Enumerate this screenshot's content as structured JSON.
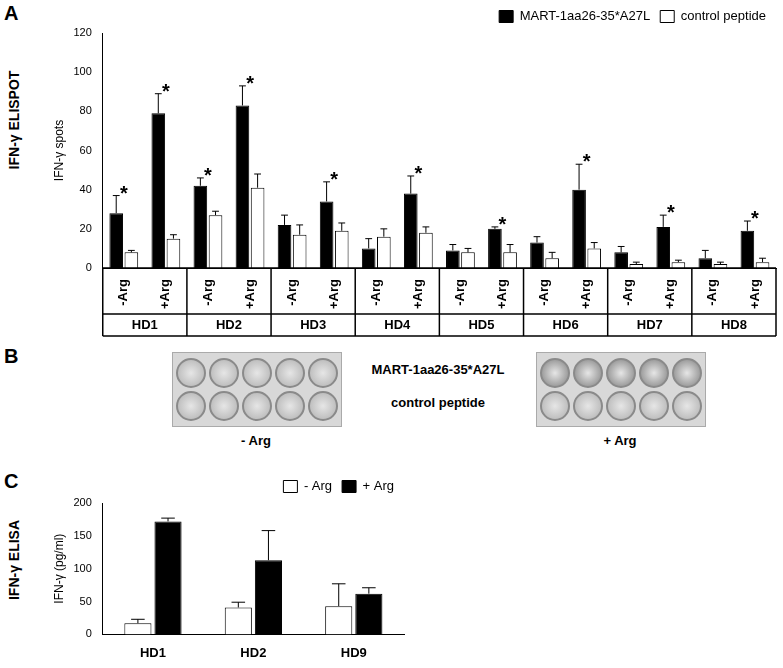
{
  "chart_data": [
    {
      "panel": "A",
      "side_title": "IFN-γ ELISPOT",
      "type": "bar",
      "y_label": "IFN-γ spots",
      "categories": [
        "-Arg",
        "+Arg",
        "-Arg",
        "+Arg",
        "-Arg",
        "+Arg",
        "-Arg",
        "+Arg",
        "-Arg",
        "+Arg",
        "-Arg",
        "+Arg",
        "-Arg",
        "+Arg",
        "-Arg",
        "+Arg"
      ],
      "groups": [
        "HD1",
        "HD2",
        "HD3",
        "HD4",
        "HD5",
        "HD6",
        "HD7",
        "HD8"
      ],
      "series": [
        {
          "name": "MART-1aa26-35*A27L",
          "color": "#000000",
          "values": [
            28,
            79,
            42,
            83,
            22,
            34,
            10,
            38,
            9,
            20,
            13,
            40,
            8,
            21,
            5,
            19
          ],
          "errors": [
            9,
            10,
            4,
            10,
            5,
            10,
            5,
            9,
            3,
            1,
            3,
            13,
            3,
            6,
            4,
            5
          ]
        },
        {
          "name": "control peptide",
          "color": "#ffffff",
          "values": [
            8,
            15,
            27,
            41,
            17,
            19,
            16,
            18,
            8,
            8,
            5,
            10,
            2,
            3,
            2,
            3
          ],
          "errors": [
            1,
            2,
            2,
            7,
            5,
            4,
            4,
            3,
            2,
            4,
            3,
            3,
            1,
            1,
            1,
            2
          ]
        }
      ],
      "ylim": [
        0,
        120
      ],
      "yticks": [
        0,
        20,
        40,
        60,
        80,
        100,
        120
      ],
      "grid": false,
      "legend": "upper right",
      "significant": [
        true,
        true,
        true,
        true,
        false,
        true,
        false,
        true,
        false,
        true,
        false,
        true,
        false,
        true,
        false,
        true
      ],
      "significance_text": "*"
    },
    {
      "panel": "C",
      "side_title": "IFN-γ ELISA",
      "type": "bar",
      "y_label": "IFN-γ (pg/ml)",
      "categories": [
        "HD1",
        "HD2",
        "HD9"
      ],
      "series": [
        {
          "name": "- Arg",
          "color": "#ffffff",
          "values": [
            17,
            41,
            43
          ],
          "errors": [
            6,
            8,
            34
          ]
        },
        {
          "name": "+ Arg",
          "color": "#000000",
          "values": [
            172,
            113,
            62
          ],
          "errors": [
            5,
            45,
            9
          ]
        }
      ],
      "ylim": [
        0,
        200
      ],
      "yticks": [
        0,
        50,
        100,
        150,
        200
      ],
      "grid": false,
      "legend": "upper right"
    }
  ],
  "image_panel": {
    "panel": "B",
    "row_labels": [
      "MART-1aa26-35*A27L",
      "control peptide"
    ],
    "conditions": [
      "- Arg",
      "+ Arg"
    ],
    "wells_per_row": 5
  }
}
